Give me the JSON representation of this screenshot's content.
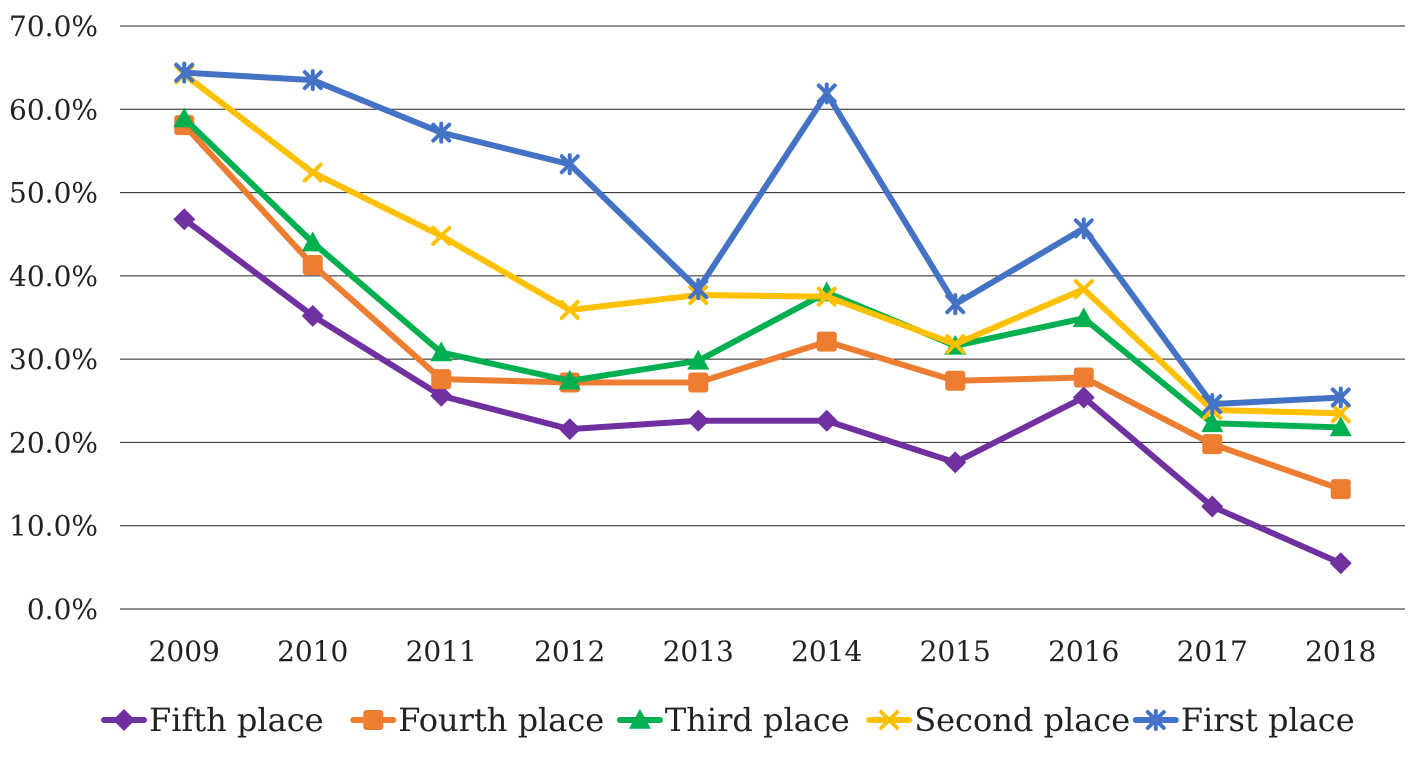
{
  "chart_data": {
    "type": "line",
    "title": "",
    "xlabel": "",
    "ylabel": "",
    "categories": [
      "2009",
      "2010",
      "2011",
      "2012",
      "2013",
      "2014",
      "2015",
      "2016",
      "2017",
      "2018"
    ],
    "ylim": [
      0,
      70
    ],
    "y_ticks": [
      0,
      10,
      20,
      30,
      40,
      50,
      60,
      70
    ],
    "y_tick_labels": [
      "0.0%",
      "10.0%",
      "20.0%",
      "30.0%",
      "40.0%",
      "50.0%",
      "60.0%",
      "70.0%"
    ],
    "grid": true,
    "legend_position": "bottom",
    "series": [
      {
        "name": "Fifth place",
        "color": "#7030A0",
        "marker": "diamond",
        "values": [
          46.8,
          35.2,
          25.6,
          21.6,
          22.6,
          22.6,
          17.6,
          25.4,
          12.3,
          5.5
        ]
      },
      {
        "name": "Fourth place",
        "color": "#ED7D31",
        "marker": "square",
        "values": [
          58.1,
          41.3,
          27.6,
          27.2,
          27.2,
          32.1,
          27.4,
          27.8,
          19.8,
          14.4
        ]
      },
      {
        "name": "Third place",
        "color": "#00B050",
        "marker": "triangle",
        "values": [
          58.9,
          44.0,
          30.8,
          27.4,
          29.8,
          38.0,
          31.6,
          34.9,
          22.3,
          21.8
        ]
      },
      {
        "name": "Second place",
        "color": "#FFC000",
        "marker": "x",
        "values": [
          64.2,
          52.4,
          44.8,
          35.9,
          37.7,
          37.5,
          31.8,
          38.4,
          23.9,
          23.5
        ]
      },
      {
        "name": "First place",
        "color": "#4472C4",
        "marker": "star",
        "values": [
          64.4,
          63.5,
          57.2,
          53.4,
          38.4,
          61.9,
          36.6,
          45.7,
          24.6,
          25.4
        ]
      }
    ]
  }
}
